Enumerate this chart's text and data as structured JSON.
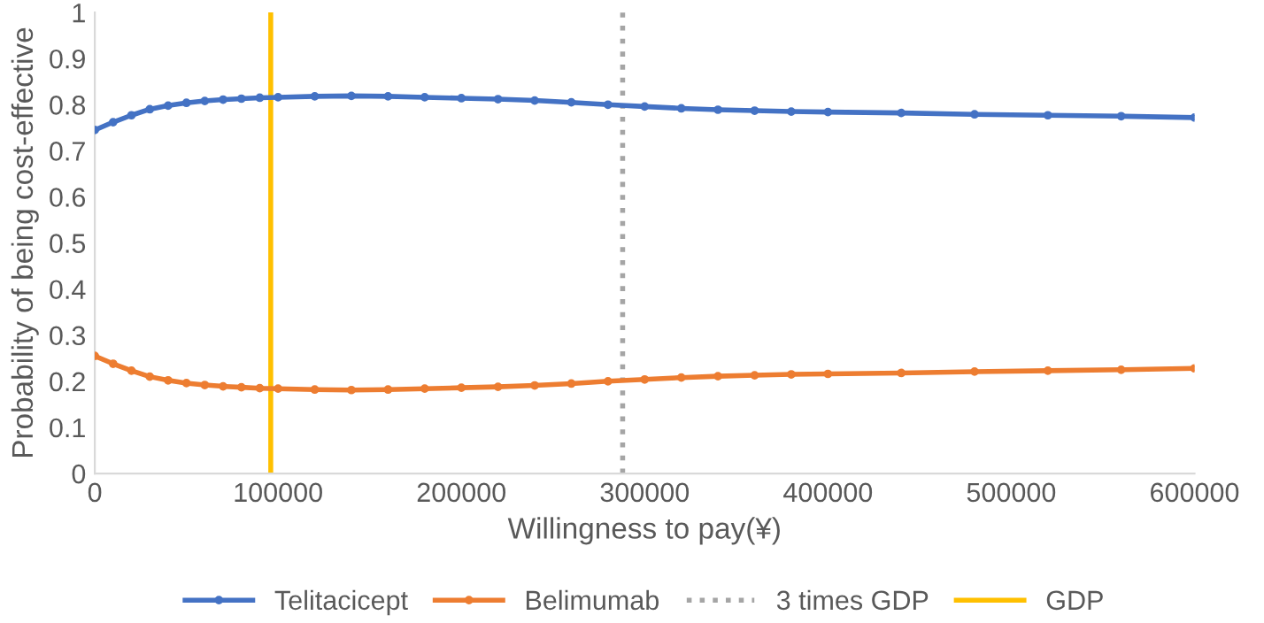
{
  "chart_data": {
    "type": "line",
    "xlabel": "Willingness to pay(¥)",
    "ylabel": "Probability of being cost-effective",
    "x": [
      0,
      10000,
      20000,
      30000,
      40000,
      50000,
      60000,
      70000,
      80000,
      90000,
      100000,
      120000,
      140000,
      160000,
      180000,
      200000,
      220000,
      240000,
      260000,
      280000,
      300000,
      320000,
      340000,
      360000,
      380000,
      400000,
      440000,
      480000,
      520000,
      560000,
      600000
    ],
    "series": [
      {
        "name": "Telitacicept",
        "color": "#4472c4",
        "values": [
          0.745,
          0.762,
          0.777,
          0.79,
          0.798,
          0.804,
          0.808,
          0.811,
          0.813,
          0.815,
          0.816,
          0.818,
          0.819,
          0.818,
          0.816,
          0.814,
          0.812,
          0.809,
          0.805,
          0.8,
          0.796,
          0.792,
          0.789,
          0.787,
          0.785,
          0.784,
          0.782,
          0.779,
          0.777,
          0.775,
          0.772
        ]
      },
      {
        "name": "Belimumab",
        "color": "#ed7d31",
        "values": [
          0.255,
          0.238,
          0.223,
          0.21,
          0.202,
          0.196,
          0.192,
          0.189,
          0.187,
          0.185,
          0.184,
          0.182,
          0.181,
          0.182,
          0.184,
          0.186,
          0.188,
          0.191,
          0.195,
          0.2,
          0.204,
          0.208,
          0.211,
          0.213,
          0.215,
          0.216,
          0.218,
          0.221,
          0.223,
          0.225,
          0.228
        ]
      }
    ],
    "ref_lines": [
      {
        "axis": "x",
        "value": 288000,
        "label": "3 times GDP",
        "color": "#a5a5a5",
        "line_style": "dotted"
      },
      {
        "axis": "x",
        "value": 96000,
        "label": "GDP",
        "color": "#ffc000",
        "line_style": "solid"
      }
    ],
    "xlim": [
      0,
      600000
    ],
    "xticks": [
      0,
      100000,
      200000,
      300000,
      400000,
      500000,
      600000
    ],
    "ylim": [
      0,
      1
    ],
    "yticks": [
      0,
      0.1,
      0.2,
      0.3,
      0.4,
      0.5,
      0.6,
      0.7,
      0.8,
      0.9,
      1
    ],
    "grid": false,
    "legend": "bottom",
    "marker": "circle",
    "line_style": "solid"
  }
}
